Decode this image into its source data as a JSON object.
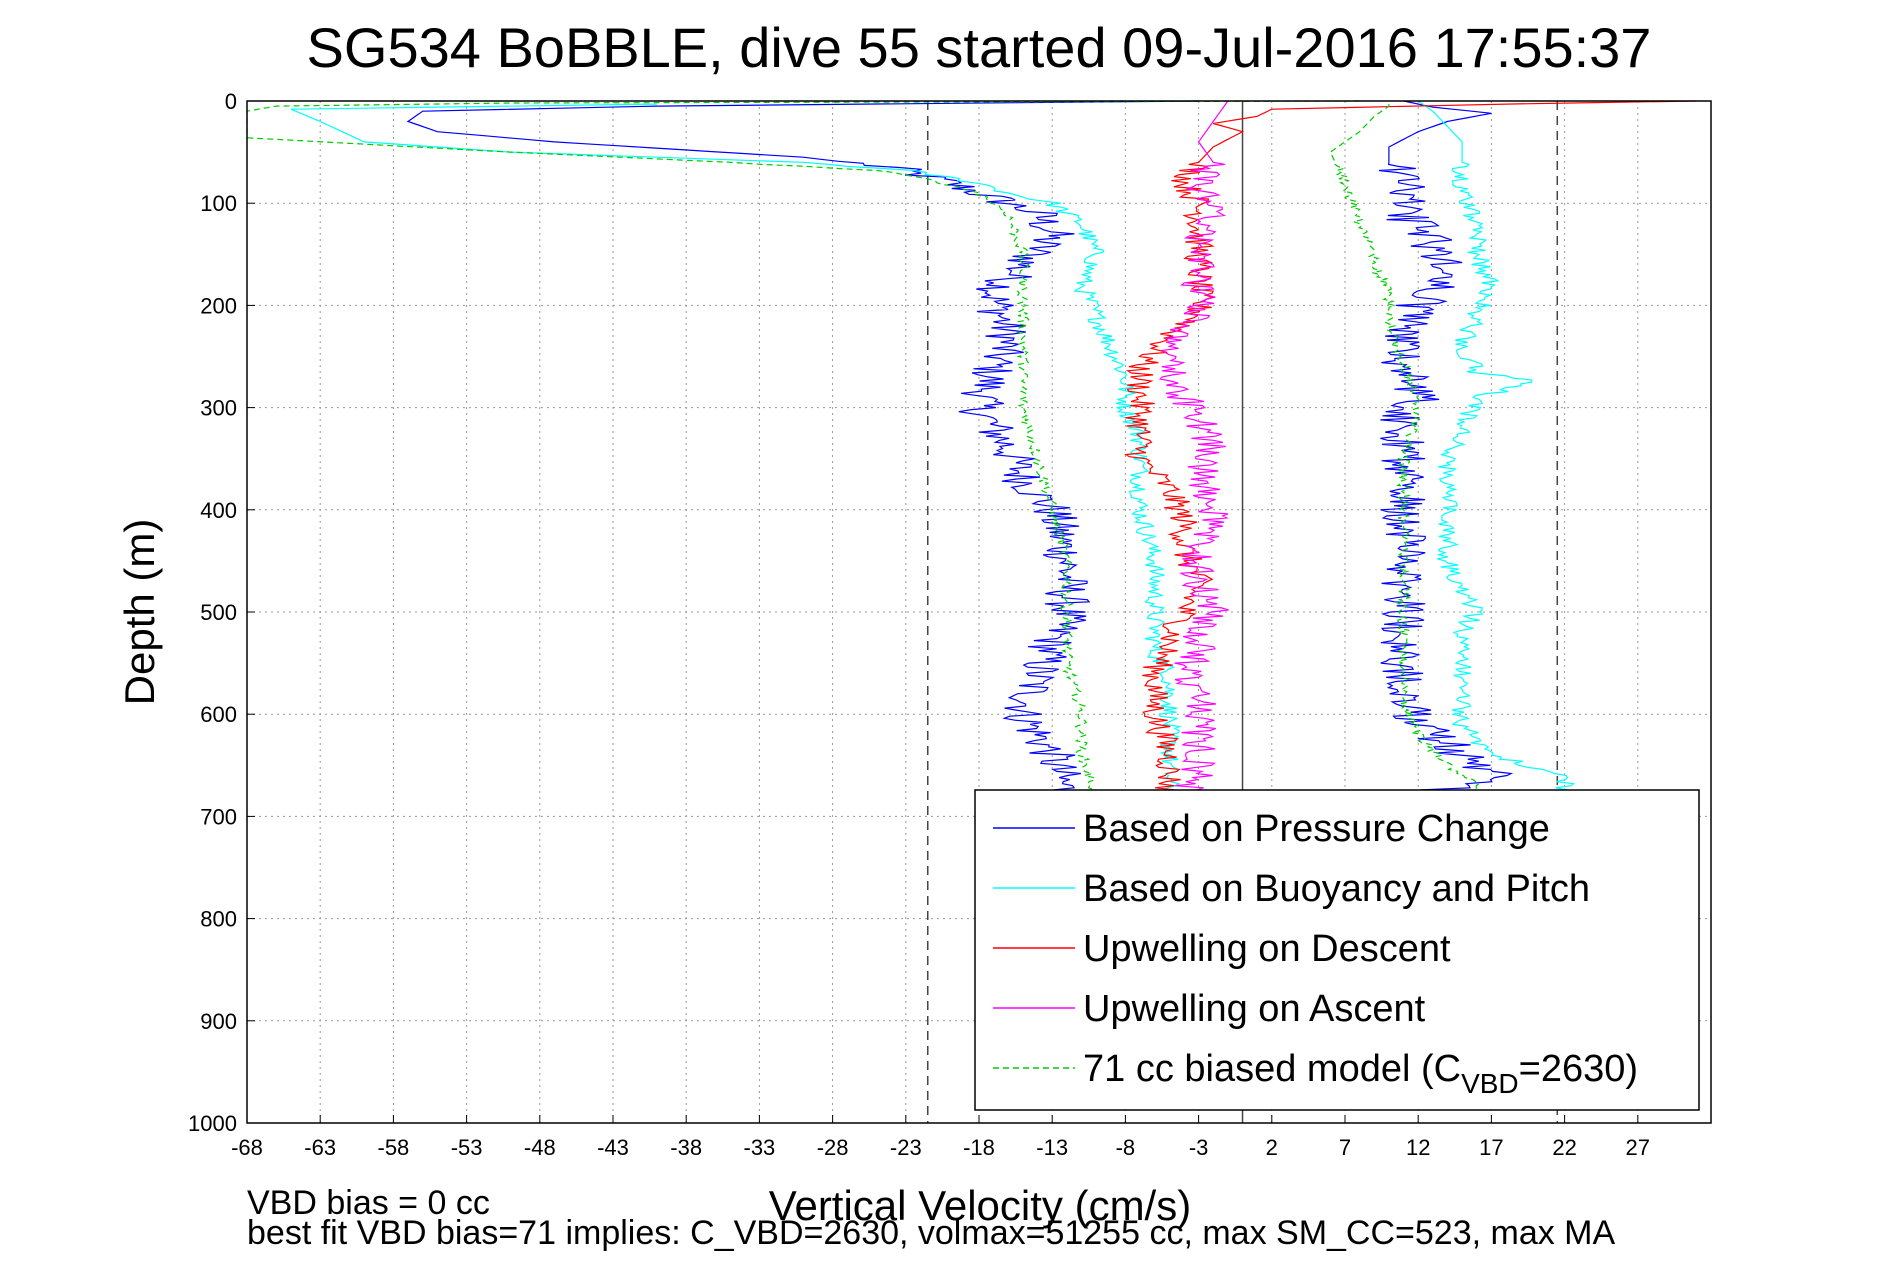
{
  "chart_data": {
    "type": "line",
    "title": "SG534 BoBBLE, dive 55 started 09-Jul-2016 17:55:37",
    "xlabel": "Vertical Velocity (cm/s)",
    "ylabel": "Depth (m)",
    "xlim": [
      -68,
      32
    ],
    "ylim": [
      0,
      1000
    ],
    "y_reversed": true,
    "grid": true,
    "legend_position": "lower-right",
    "xticks": [
      -68,
      -63,
      -58,
      -53,
      -48,
      -43,
      -38,
      -33,
      -28,
      -23,
      -18,
      -13,
      -8,
      -3,
      2,
      7,
      12,
      17,
      22,
      27
    ],
    "yticks": [
      0,
      100,
      200,
      300,
      400,
      500,
      600,
      700,
      800,
      900,
      1000
    ],
    "reference_lines": {
      "dashed_x": [
        -21.5,
        21.5
      ],
      "solid_x": [
        0
      ]
    },
    "series": [
      {
        "name": "Based on Pressure Change",
        "color": "#0000ff",
        "style": "solid",
        "noise": 1.6,
        "points": [
          [
            -3,
            0
          ],
          [
            -40,
            5
          ],
          [
            -56,
            10
          ],
          [
            -57,
            20
          ],
          [
            -55,
            30
          ],
          [
            -47,
            40
          ],
          [
            -30,
            55
          ],
          [
            -24,
            65
          ],
          [
            -20,
            80
          ],
          [
            -17,
            95
          ],
          [
            -14,
            110
          ],
          [
            -13,
            130
          ],
          [
            -15,
            160
          ],
          [
            -17,
            190
          ],
          [
            -16,
            230
          ],
          [
            -17,
            260
          ],
          [
            -18,
            300
          ],
          [
            -16,
            340
          ],
          [
            -15,
            370
          ],
          [
            -13,
            400
          ],
          [
            -12,
            450
          ],
          [
            -12,
            500
          ],
          [
            -14,
            560
          ],
          [
            -15,
            600
          ],
          [
            -13,
            640
          ],
          [
            -12,
            680
          ],
          [
            12,
            680
          ],
          [
            17,
            660
          ],
          [
            15,
            640
          ],
          [
            12,
            610
          ],
          [
            11,
            560
          ],
          [
            11,
            500
          ],
          [
            11,
            450
          ],
          [
            11,
            400
          ],
          [
            11,
            350
          ],
          [
            11,
            310
          ],
          [
            12,
            290
          ],
          [
            11,
            260
          ],
          [
            11,
            230
          ],
          [
            12,
            200
          ],
          [
            14,
            170
          ],
          [
            13,
            140
          ],
          [
            11,
            110
          ],
          [
            11,
            80
          ],
          [
            10,
            60
          ],
          [
            10,
            45
          ],
          [
            12,
            30
          ],
          [
            14,
            20
          ],
          [
            17,
            12
          ],
          [
            13,
            6
          ],
          [
            11,
            0
          ]
        ]
      },
      {
        "name": "Based on Buoyancy and Pitch",
        "color": "#00ffff",
        "style": "solid",
        "noise": 0.7,
        "points": [
          [
            -40,
            3
          ],
          [
            -65,
            8
          ],
          [
            -63,
            20
          ],
          [
            -60,
            40
          ],
          [
            -50,
            50
          ],
          [
            -30,
            60
          ],
          [
            -23,
            68
          ],
          [
            -18,
            80
          ],
          [
            -16,
            90
          ],
          [
            -13,
            100
          ],
          [
            -11,
            120
          ],
          [
            -10,
            150
          ],
          [
            -11,
            180
          ],
          [
            -10,
            210
          ],
          [
            -9,
            240
          ],
          [
            -8,
            270
          ],
          [
            -8,
            300
          ],
          [
            -7,
            330
          ],
          [
            -7,
            360
          ],
          [
            -7,
            400
          ],
          [
            -6,
            450
          ],
          [
            -6,
            500
          ],
          [
            -6,
            540
          ],
          [
            -5,
            560
          ],
          [
            -5,
            600
          ],
          [
            -5,
            640
          ],
          [
            -5,
            680
          ],
          [
            22,
            680
          ],
          [
            22,
            660
          ],
          [
            17,
            640
          ],
          [
            15,
            610
          ],
          [
            15,
            590
          ],
          [
            15,
            550
          ],
          [
            15,
            520
          ],
          [
            16,
            500
          ],
          [
            15,
            480
          ],
          [
            14,
            450
          ],
          [
            14,
            400
          ],
          [
            14,
            350
          ],
          [
            15,
            320
          ],
          [
            16,
            290
          ],
          [
            20,
            275
          ],
          [
            16,
            265
          ],
          [
            15,
            240
          ],
          [
            16,
            210
          ],
          [
            17,
            180
          ],
          [
            16,
            150
          ],
          [
            16,
            120
          ],
          [
            15,
            90
          ],
          [
            15,
            60
          ],
          [
            15,
            40
          ],
          [
            14,
            25
          ],
          [
            13,
            10
          ],
          [
            12,
            0
          ]
        ]
      },
      {
        "name": "Upwelling on Descent",
        "color": "#ff0000",
        "style": "solid",
        "noise": 1.0,
        "points": [
          [
            31,
            0
          ],
          [
            18,
            3
          ],
          [
            2,
            8
          ],
          [
            1,
            15
          ],
          [
            -2,
            22
          ],
          [
            0,
            30
          ],
          [
            -2,
            45
          ],
          [
            -3,
            60
          ],
          [
            -4,
            80
          ],
          [
            -3,
            100
          ],
          [
            -3,
            130
          ],
          [
            -3,
            160
          ],
          [
            -3,
            190
          ],
          [
            -3,
            210
          ],
          [
            -5,
            230
          ],
          [
            -7,
            260
          ],
          [
            -7,
            290
          ],
          [
            -7,
            320
          ],
          [
            -7,
            350
          ],
          [
            -5,
            380
          ],
          [
            -4,
            410
          ],
          [
            -4,
            440
          ],
          [
            -3,
            470
          ],
          [
            -4,
            500
          ],
          [
            -5,
            530
          ],
          [
            -6,
            560
          ],
          [
            -6,
            600
          ],
          [
            -5,
            640
          ],
          [
            -5,
            670
          ],
          [
            -6,
            680
          ]
        ]
      },
      {
        "name": "Upwelling on Ascent",
        "color": "#ff00ff",
        "style": "solid",
        "noise": 1.2,
        "points": [
          [
            -4,
            680
          ],
          [
            -3,
            660
          ],
          [
            -3,
            640
          ],
          [
            -3,
            600
          ],
          [
            -3,
            580
          ],
          [
            -4,
            560
          ],
          [
            -3,
            540
          ],
          [
            -3,
            520
          ],
          [
            -2,
            500
          ],
          [
            -3,
            470
          ],
          [
            -3,
            440
          ],
          [
            -2,
            400
          ],
          [
            -3,
            370
          ],
          [
            -2,
            340
          ],
          [
            -3,
            310
          ],
          [
            -4,
            290
          ],
          [
            -5,
            260
          ],
          [
            -4,
            230
          ],
          [
            -3,
            200
          ],
          [
            -3,
            170
          ],
          [
            -3,
            140
          ],
          [
            -2,
            110
          ],
          [
            -3,
            80
          ],
          [
            -2,
            60
          ],
          [
            -3,
            40
          ],
          [
            -2,
            20
          ],
          [
            -1,
            0
          ]
        ]
      },
      {
        "name": "71 cc biased model (C",
        "name_sub": "VBD",
        "name_tail": "=2630)",
        "color": "#00cc00",
        "style": "dashed",
        "noise": 0.4,
        "points": [
          [
            8,
            0
          ],
          [
            -50,
            2
          ],
          [
            -66,
            5
          ],
          [
            -68,
            10
          ],
          [
            -68,
            36
          ],
          [
            -50,
            50
          ],
          [
            -35,
            60
          ],
          [
            -25,
            68
          ],
          [
            -21,
            78
          ],
          [
            -18,
            90
          ],
          [
            -16,
            110
          ],
          [
            -15,
            150
          ],
          [
            -15,
            200
          ],
          [
            -15,
            250
          ],
          [
            -15,
            300
          ],
          [
            -14,
            350
          ],
          [
            -13,
            400
          ],
          [
            -12,
            450
          ],
          [
            -12,
            500
          ],
          [
            -12,
            550
          ],
          [
            -11,
            600
          ],
          [
            -11,
            640
          ],
          [
            -10,
            680
          ],
          [
            17,
            680
          ],
          [
            14,
            650
          ],
          [
            12,
            620
          ],
          [
            11,
            590
          ],
          [
            11,
            550
          ],
          [
            11,
            500
          ],
          [
            11,
            450
          ],
          [
            11,
            400
          ],
          [
            11,
            350
          ],
          [
            12,
            300
          ],
          [
            11,
            260
          ],
          [
            10,
            220
          ],
          [
            10,
            190
          ],
          [
            9,
            160
          ],
          [
            8,
            120
          ],
          [
            7,
            80
          ],
          [
            6,
            50
          ],
          [
            8,
            30
          ],
          [
            9,
            15
          ],
          [
            10,
            5
          ],
          [
            10,
            0
          ]
        ]
      }
    ]
  },
  "footnotes": {
    "line1": "VBD bias = 0 cc",
    "line2": "best fit VBD bias=71 implies: C_VBD=2630, volmax=51255 cc, max SM_CC=523, max MA"
  }
}
